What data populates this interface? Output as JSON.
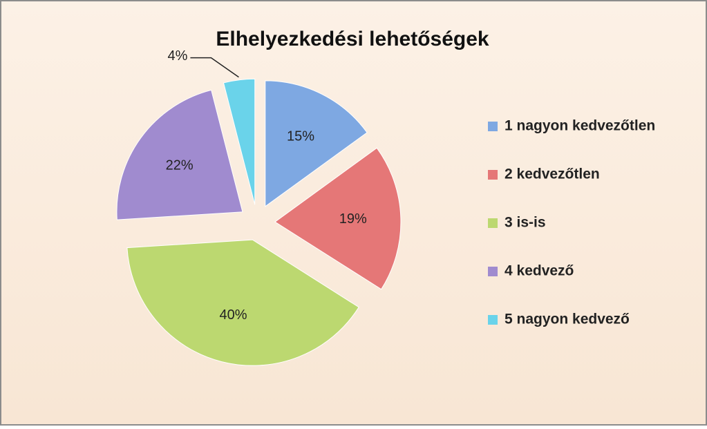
{
  "chart_data": {
    "type": "pie",
    "title": "Elhelyezkedési lehetőségek",
    "categories": [
      "1 nagyon kedvezőtlen",
      "2 kedvezőtlen",
      "3 is-is",
      "4 kedvező",
      "5 nagyon kedvező"
    ],
    "values": [
      15,
      19,
      40,
      22,
      4
    ],
    "value_labels": [
      "15%",
      "19%",
      "40%",
      "22%",
      "4%"
    ],
    "colors": [
      "#7ea8e2",
      "#e57777",
      "#bcd870",
      "#a08bcf",
      "#6ad3ea"
    ],
    "legend": "right"
  }
}
